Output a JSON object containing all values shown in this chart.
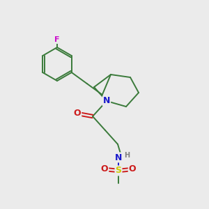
{
  "background_color": "#ebebeb",
  "atom_colors": {
    "C": "#3a7a3a",
    "N": "#1a1acc",
    "O": "#cc1a1a",
    "F": "#cc10cc",
    "S": "#cccc00",
    "H": "#808080"
  },
  "bond_lw": 1.4,
  "figsize": [
    3.0,
    3.0
  ],
  "dpi": 100,
  "xlim": [
    0,
    300
  ],
  "ylim": [
    0,
    300
  ]
}
